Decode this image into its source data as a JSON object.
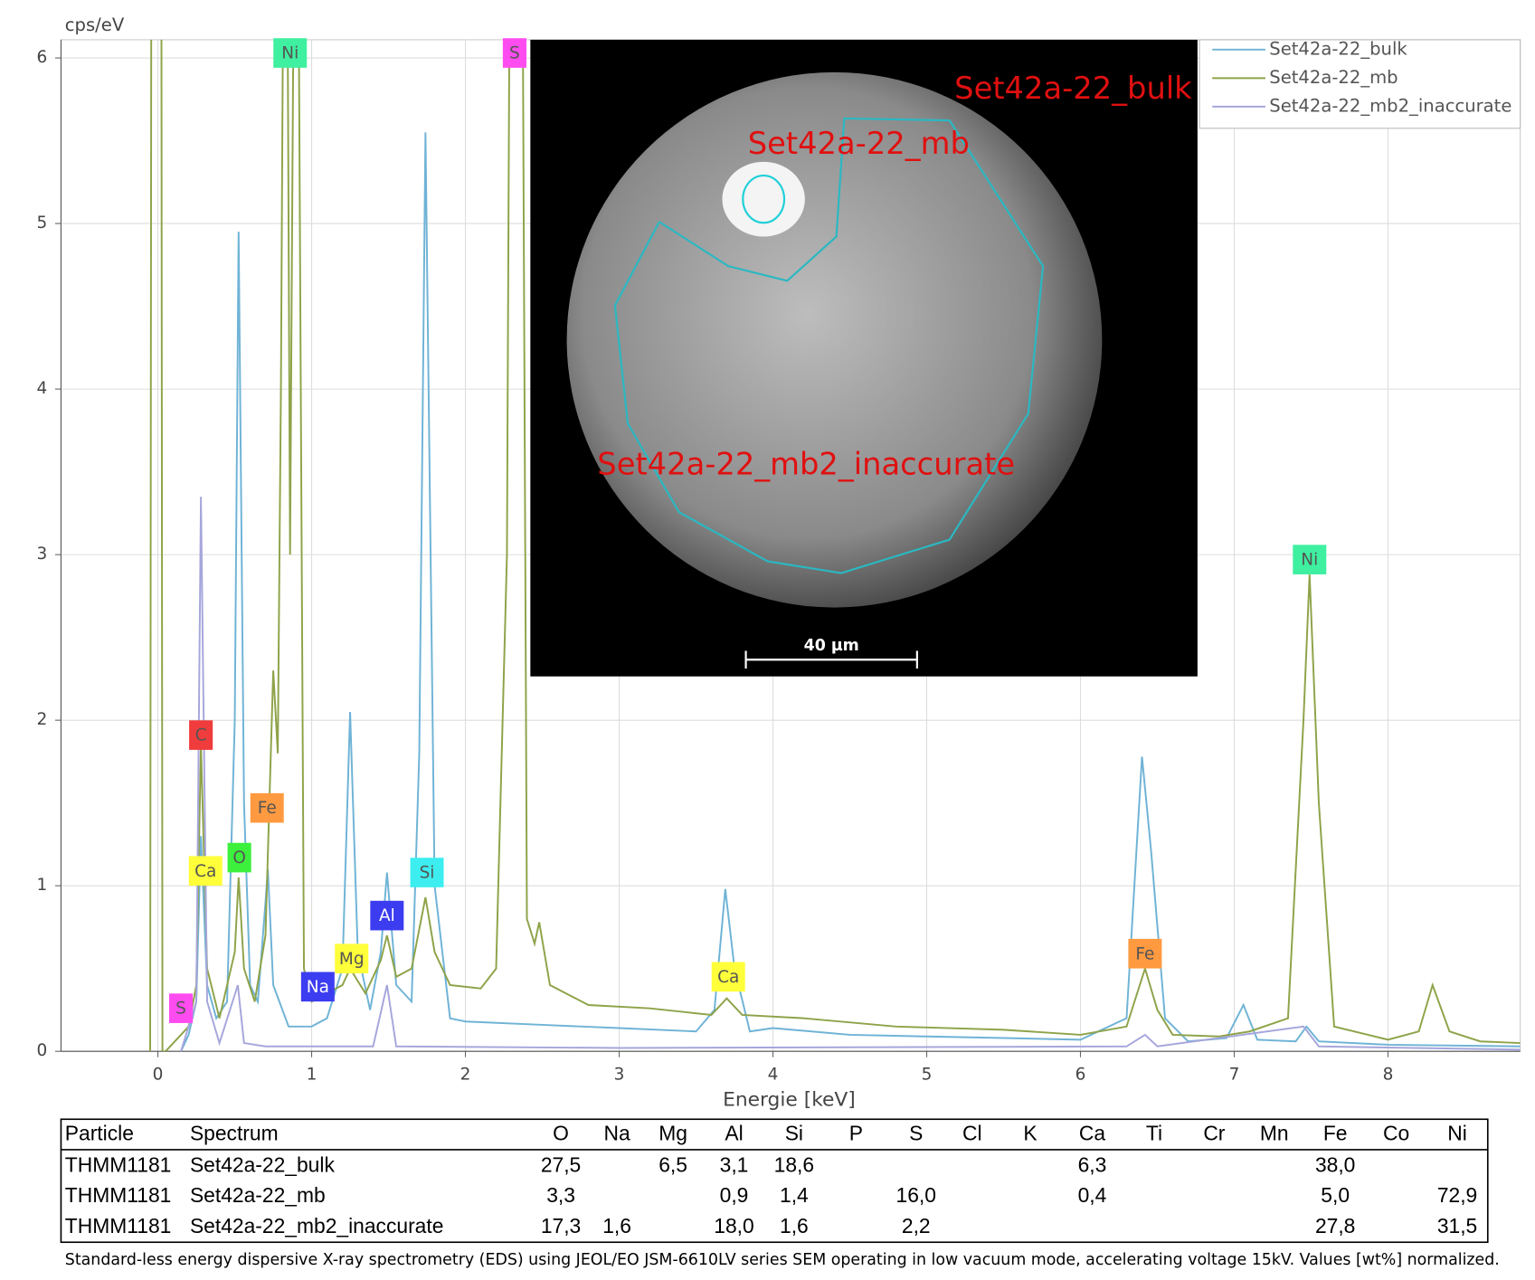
{
  "chart_data": {
    "type": "line",
    "y_label": "cps/eV",
    "x_label": "Energie [keV]",
    "xlim": [
      -0.63,
      8.86
    ],
    "ylim": [
      0,
      6.11
    ],
    "xticks": [
      0,
      1,
      2,
      3,
      4,
      5,
      6,
      7,
      8
    ],
    "yticks": [
      0,
      1,
      2,
      3,
      4,
      5,
      6
    ],
    "grid": true,
    "legend": "upper right",
    "series": [
      {
        "name": "Set42a-22_bulk",
        "color": "#6fb3d6",
        "x": [
          0.15,
          0.2,
          0.25,
          0.28,
          0.32,
          0.38,
          0.45,
          0.5,
          0.525,
          0.56,
          0.6,
          0.65,
          0.7,
          0.715,
          0.75,
          0.85,
          1.0,
          1.1,
          1.2,
          1.25,
          1.3,
          1.38,
          1.45,
          1.49,
          1.55,
          1.65,
          1.7,
          1.74,
          1.8,
          1.9,
          2.0,
          2.5,
          3.0,
          3.5,
          3.62,
          3.69,
          3.75,
          3.85,
          4.0,
          4.5,
          5.0,
          5.5,
          6.0,
          6.3,
          6.4,
          6.46,
          6.55,
          6.7,
          6.95,
          7.06,
          7.15,
          7.4,
          7.47,
          7.55,
          8.0,
          8.86
        ],
        "values": [
          0,
          0.1,
          0.3,
          1.3,
          0.4,
          0.2,
          0.3,
          2.0,
          4.95,
          1.5,
          0.4,
          0.3,
          0.9,
          1.1,
          0.4,
          0.15,
          0.15,
          0.2,
          0.5,
          2.05,
          0.6,
          0.25,
          0.6,
          1.08,
          0.4,
          0.3,
          1.8,
          5.55,
          1.0,
          0.2,
          0.18,
          0.16,
          0.14,
          0.12,
          0.25,
          0.98,
          0.5,
          0.12,
          0.14,
          0.1,
          0.09,
          0.08,
          0.07,
          0.2,
          1.78,
          1.2,
          0.2,
          0.06,
          0.08,
          0.28,
          0.07,
          0.06,
          0.15,
          0.06,
          0.04,
          0.03
        ]
      },
      {
        "name": "Set42a-22_mb",
        "color": "#8ea349",
        "x": [
          -0.05,
          -0.04,
          0.02,
          0.03,
          0.05,
          0.15,
          0.2,
          0.25,
          0.28,
          0.32,
          0.4,
          0.5,
          0.525,
          0.56,
          0.63,
          0.7,
          0.75,
          0.78,
          0.8,
          0.83,
          0.86,
          0.9,
          0.95,
          1.0,
          1.1,
          1.2,
          1.25,
          1.35,
          1.45,
          1.49,
          1.55,
          1.65,
          1.74,
          1.8,
          1.9,
          2.1,
          2.2,
          2.27,
          2.3,
          2.36,
          2.4,
          2.45,
          2.48,
          2.55,
          2.8,
          3.2,
          3.6,
          3.7,
          3.8,
          4.2,
          4.8,
          5.5,
          6.0,
          6.3,
          6.42,
          6.5,
          6.6,
          6.9,
          7.1,
          7.35,
          7.45,
          7.49,
          7.55,
          7.65,
          8.0,
          8.2,
          8.29,
          8.4,
          8.6,
          8.86
        ],
        "values": [
          0,
          9,
          9,
          0,
          0,
          0.1,
          0.15,
          0.4,
          1.85,
          0.5,
          0.2,
          0.6,
          1.05,
          0.5,
          0.3,
          0.7,
          2.3,
          1.8,
          4,
          9,
          3,
          9,
          0.5,
          0.3,
          0.35,
          0.4,
          0.5,
          0.35,
          0.55,
          0.7,
          0.45,
          0.5,
          0.93,
          0.6,
          0.4,
          0.38,
          0.5,
          3,
          9,
          9,
          0.8,
          0.65,
          0.78,
          0.4,
          0.28,
          0.26,
          0.22,
          0.32,
          0.22,
          0.2,
          0.15,
          0.13,
          0.1,
          0.15,
          0.5,
          0.25,
          0.1,
          0.09,
          0.12,
          0.2,
          2.0,
          2.88,
          1.5,
          0.15,
          0.07,
          0.12,
          0.4,
          0.12,
          0.06,
          0.05
        ]
      },
      {
        "name": "Set42a-22_mb2_inaccurate",
        "color": "#a6a6dc",
        "x": [
          0.15,
          0.25,
          0.28,
          0.32,
          0.4,
          0.52,
          0.56,
          0.7,
          1.4,
          1.49,
          1.55,
          3.0,
          6.3,
          6.42,
          6.5,
          7.45,
          7.55,
          8.86
        ],
        "values": [
          0,
          0.3,
          3.35,
          0.3,
          0.05,
          0.4,
          0.05,
          0.03,
          0.03,
          0.4,
          0.03,
          0.02,
          0.03,
          0.1,
          0.03,
          0.15,
          0.03,
          0.01
        ]
      }
    ],
    "annotations": [
      {
        "text": "Ni",
        "x": 0.86,
        "y": 6.03,
        "color": "#3ef0a0"
      },
      {
        "text": "S",
        "x": 2.32,
        "y": 6.03,
        "color": "#ff4cf0"
      },
      {
        "text": "C",
        "x": 0.28,
        "y": 1.91,
        "color": "#f03c3c"
      },
      {
        "text": "Fe",
        "x": 0.71,
        "y": 1.47,
        "color": "#ff9a40"
      },
      {
        "text": "Ca",
        "x": 0.31,
        "y": 1.09,
        "color": "#ffff3a"
      },
      {
        "text": "O",
        "x": 0.53,
        "y": 1.17,
        "color": "#3cf03c"
      },
      {
        "text": "Si",
        "x": 1.75,
        "y": 1.08,
        "color": "#3ceef0"
      },
      {
        "text": "Al",
        "x": 1.49,
        "y": 0.82,
        "color": "#3c3cf0"
      },
      {
        "text": "Mg",
        "x": 1.26,
        "y": 0.56,
        "color": "#ffff3a"
      },
      {
        "text": "Na",
        "x": 1.04,
        "y": 0.39,
        "color": "#3c3cf0"
      },
      {
        "text": "S",
        "x": 0.15,
        "y": 0.26,
        "color": "#ff4cf0"
      },
      {
        "text": "Ca",
        "x": 3.71,
        "y": 0.45,
        "color": "#ffff3a"
      },
      {
        "text": "Fe",
        "x": 6.42,
        "y": 0.59,
        "color": "#ff9a40"
      },
      {
        "text": "Ni",
        "x": 7.49,
        "y": 2.97,
        "color": "#3ef0a0"
      }
    ],
    "inset": {
      "labels": [
        "Set42a-22_bulk",
        "Set42a-22_mb",
        "Set42a-22_mb2_inaccurate"
      ],
      "scale_bar": "40 µm"
    }
  },
  "table": {
    "header": [
      "Particle",
      "Spectrum",
      "O",
      "Na",
      "Mg",
      "Al",
      "Si",
      "P",
      "S",
      "Cl",
      "K",
      "Ca",
      "Ti",
      "Cr",
      "Mn",
      "Fe",
      "Co",
      "Ni"
    ],
    "rows": [
      [
        "THMM1181",
        "Set42a-22_bulk",
        "27,5",
        null,
        "6,5",
        "3,1",
        "18,6",
        null,
        null,
        null,
        null,
        "6,3",
        null,
        null,
        null,
        "38,0",
        null,
        null
      ],
      [
        "THMM1181",
        "Set42a-22_mb",
        "3,3",
        null,
        null,
        "0,9",
        "1,4",
        null,
        "16,0",
        null,
        null,
        "0,4",
        null,
        null,
        null,
        "5,0",
        null,
        "72,9"
      ],
      [
        "THMM1181",
        "Set42a-22_mb2_inaccurate",
        "17,3",
        "1,6",
        null,
        "18,0",
        "1,6",
        null,
        "2,2",
        null,
        null,
        null,
        null,
        null,
        null,
        "27,8",
        null,
        "31,5"
      ]
    ]
  },
  "caption": "Standard-less energy dispersive X-ray spectrometry (EDS) using JEOL/EO JSM-6610LV series SEM operating in low vacuum mode, accelerating voltage 15kV. Values [wt%] normalized."
}
